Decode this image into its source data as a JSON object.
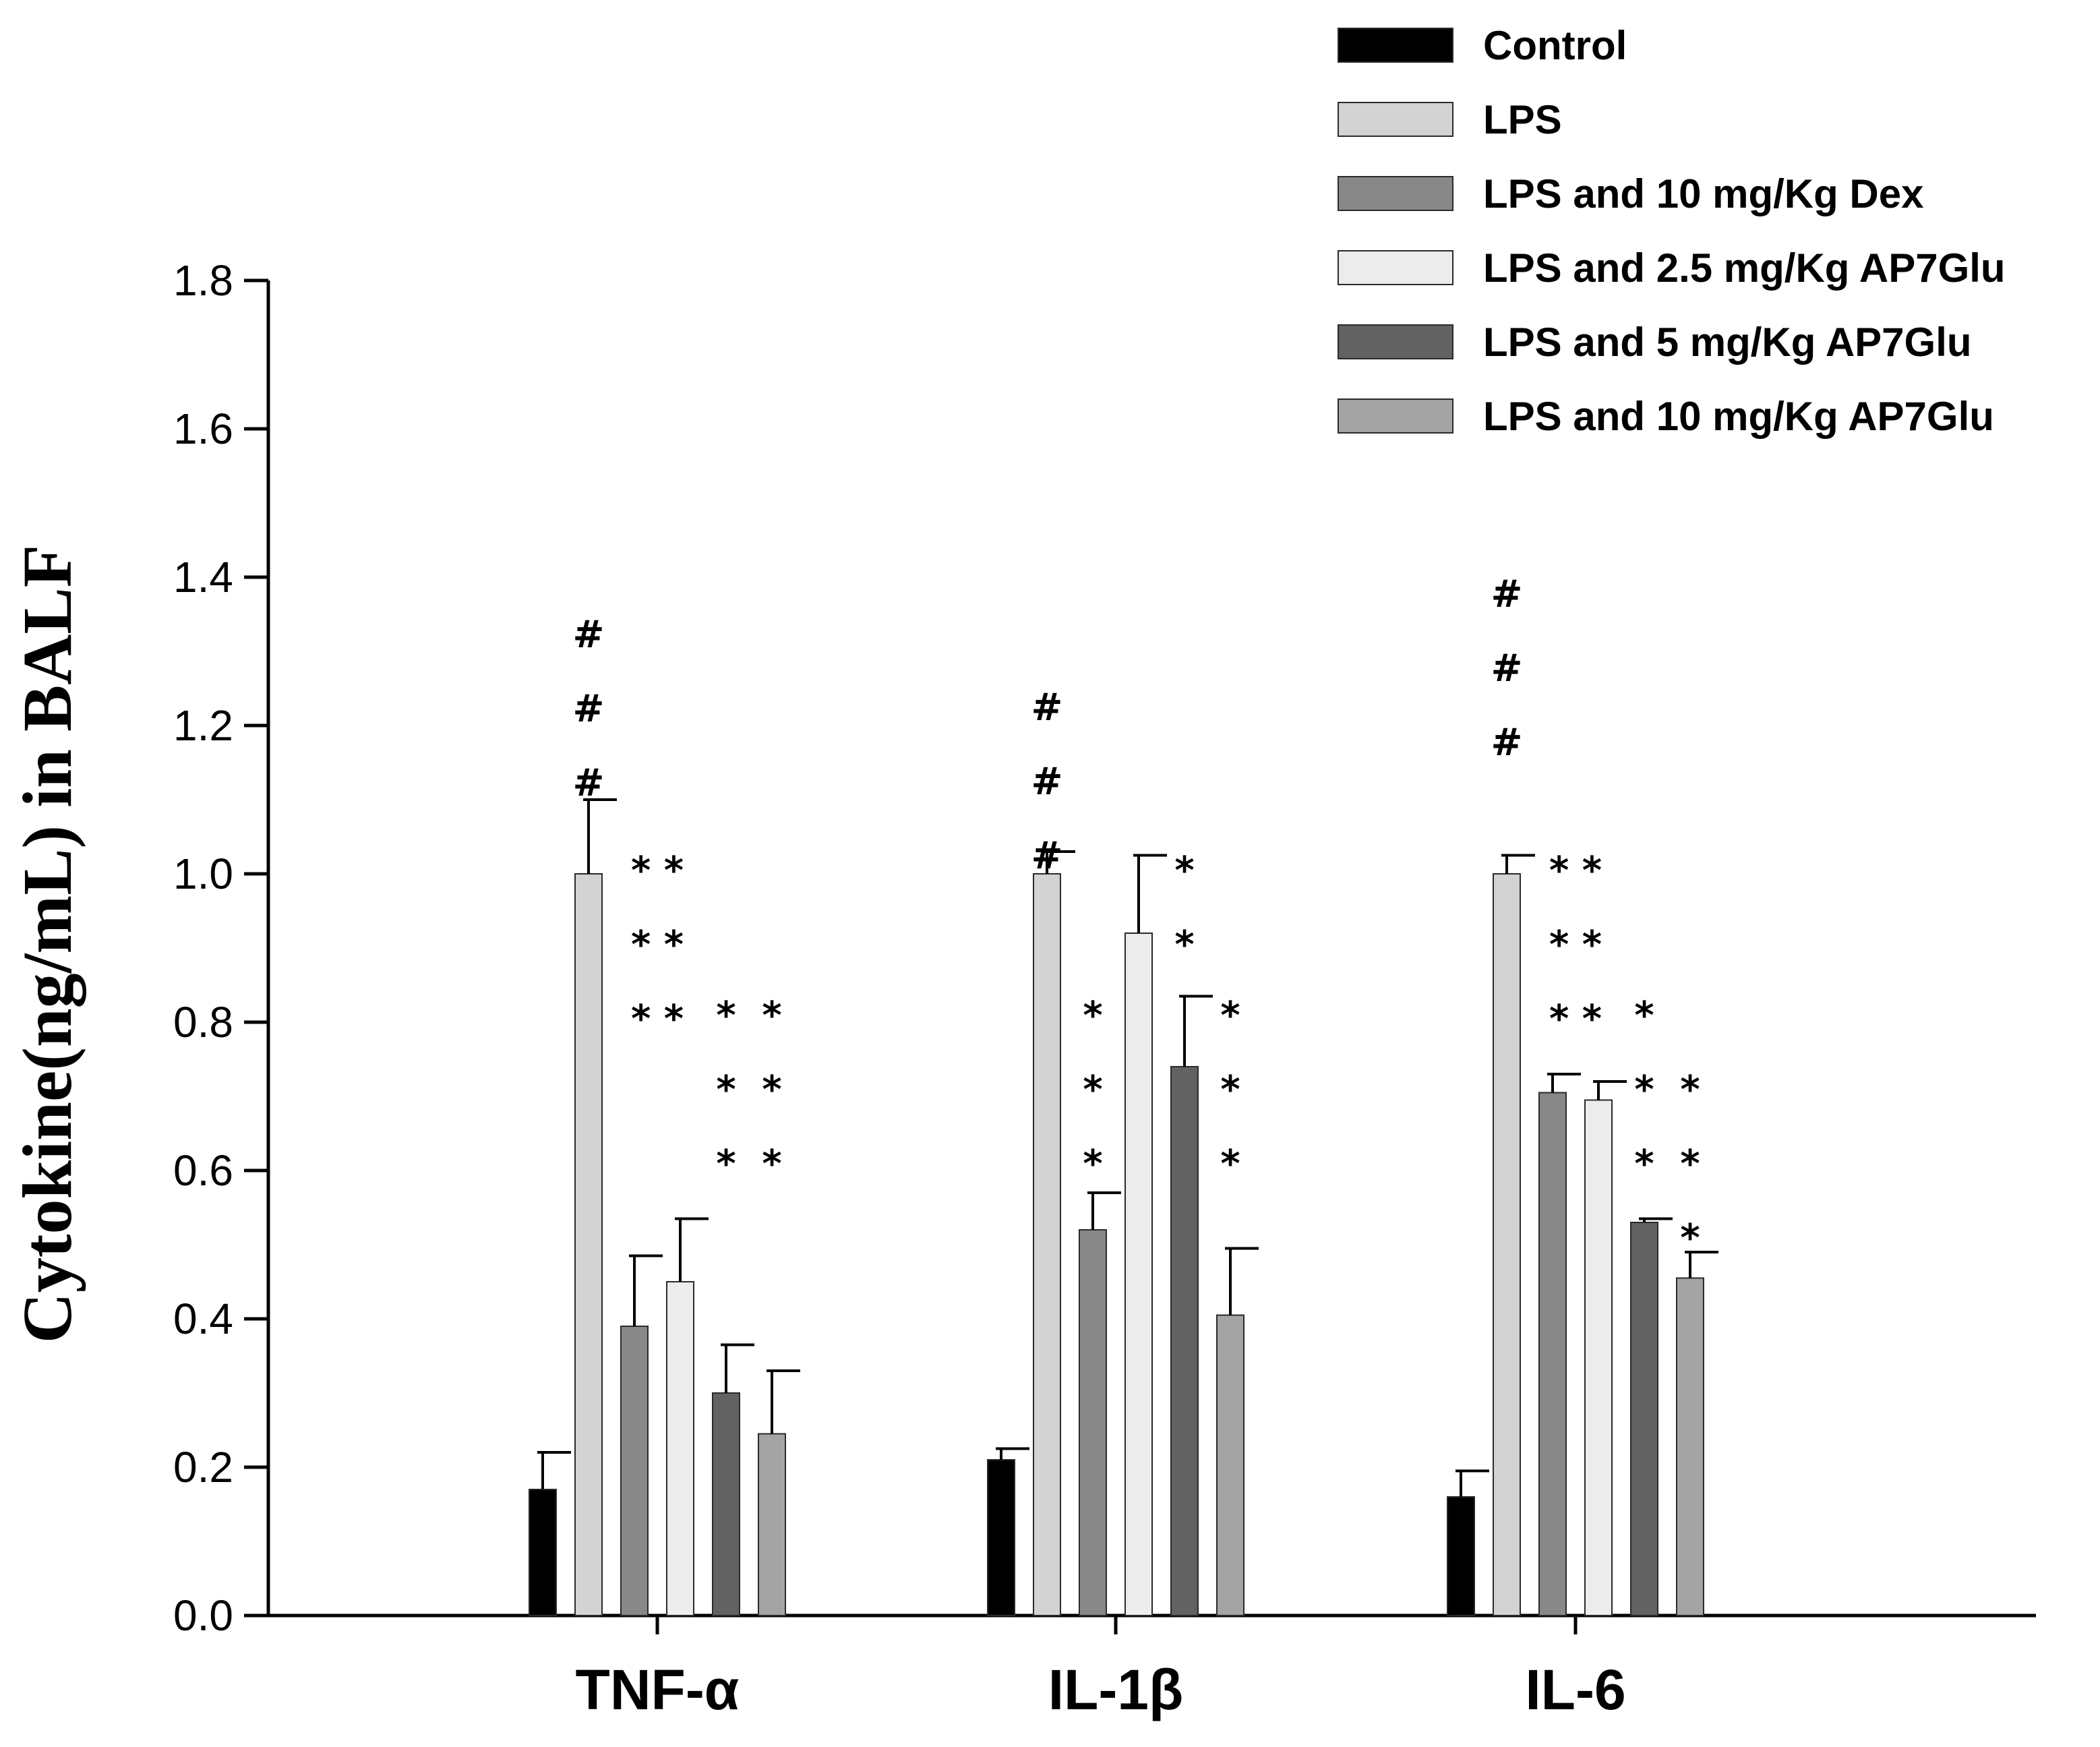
{
  "chart_data": {
    "type": "bar",
    "title": "",
    "xlabel": "",
    "ylabel": "Cytokine(ng/mL) in BALF",
    "ylim": [
      0,
      1.8
    ],
    "yticks": [
      "0.0",
      "0.2",
      "0.4",
      "0.6",
      "0.8",
      "1.0",
      "1.2",
      "1.4",
      "1.6",
      "1.8"
    ],
    "grid": false,
    "legend_position": "top-right",
    "categories": [
      "TNF-α",
      "IL-1β",
      "IL-6"
    ],
    "series": [
      {
        "name": "Control",
        "color": "#000000",
        "values": [
          0.17,
          0.21,
          0.16
        ],
        "errors": [
          0.05,
          0.015,
          0.035
        ]
      },
      {
        "name": "LPS",
        "color": "#d3d3d3",
        "values": [
          1.0,
          1.0,
          1.0
        ],
        "errors": [
          0.1,
          0.03,
          0.025
        ]
      },
      {
        "name": "LPS and 10 mg/Kg Dex",
        "color": "#888888",
        "values": [
          0.39,
          0.52,
          0.705
        ],
        "errors": [
          0.095,
          0.05,
          0.025
        ]
      },
      {
        "name": "LPS and 2.5 mg/Kg AP7Glu",
        "color": "#ececec",
        "values": [
          0.45,
          0.92,
          0.695
        ],
        "errors": [
          0.085,
          0.105,
          0.025
        ]
      },
      {
        "name": "LPS and 5 mg/Kg AP7Glu",
        "color": "#626262",
        "values": [
          0.3,
          0.74,
          0.53
        ],
        "errors": [
          0.065,
          0.095,
          0.005
        ]
      },
      {
        "name": "LPS and 10 mg/Kg AP7Glu",
        "color": "#a4a4a4",
        "values": [
          0.245,
          0.405,
          0.455
        ],
        "errors": [
          0.085,
          0.09,
          0.035
        ]
      }
    ],
    "annotations": [
      {
        "category": 0,
        "series": 1,
        "lines": [
          "#",
          "#",
          "#"
        ]
      },
      {
        "category": 0,
        "series": 2,
        "lines": [
          "* *",
          "* *",
          "* *"
        ]
      },
      {
        "category": 0,
        "series": 4,
        "lines": [
          "*",
          "*",
          "*"
        ]
      },
      {
        "category": 0,
        "series": 5,
        "lines": [
          "*",
          "*",
          "*"
        ]
      },
      {
        "category": 1,
        "series": 1,
        "lines": [
          "#",
          "#",
          "#"
        ]
      },
      {
        "category": 1,
        "series": 2,
        "lines": [
          "*",
          "*",
          "*"
        ]
      },
      {
        "category": 1,
        "series": 4,
        "lines": [
          "*",
          "*"
        ]
      },
      {
        "category": 1,
        "series": 5,
        "lines": [
          "*",
          "*",
          "*"
        ]
      },
      {
        "category": 2,
        "series": 1,
        "lines": [
          "#",
          "#",
          "#"
        ]
      },
      {
        "category": 2,
        "series": 2,
        "lines": [
          "* *",
          "* *",
          "* *"
        ]
      },
      {
        "category": 2,
        "series": 4,
        "lines": [
          "*",
          "*",
          "*"
        ]
      },
      {
        "category": 2,
        "series": 5,
        "lines": [
          "*",
          "*",
          "*"
        ]
      }
    ]
  }
}
